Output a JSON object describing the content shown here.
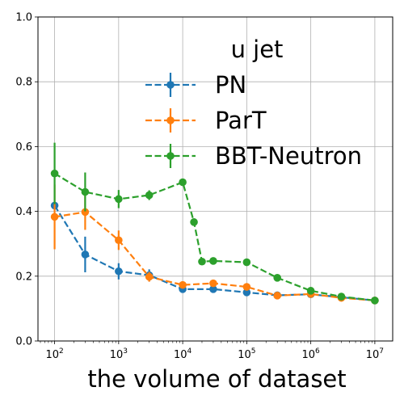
{
  "chart_data": {
    "type": "line",
    "xscale": "log",
    "xlabel": "the volume of dataset",
    "ylabel": "",
    "xlim": [
      55,
      19000000
    ],
    "ylim": [
      0,
      1
    ],
    "x_ticks": [
      100,
      1000,
      10000,
      100000,
      1000000,
      10000000
    ],
    "x_tick_labels": [
      {
        "base": "10",
        "exp": "2"
      },
      {
        "base": "10",
        "exp": "3"
      },
      {
        "base": "10",
        "exp": "4"
      },
      {
        "base": "10",
        "exp": "5"
      },
      {
        "base": "10",
        "exp": "6"
      },
      {
        "base": "10",
        "exp": "7"
      }
    ],
    "y_ticks": [
      0.0,
      0.2,
      0.4,
      0.6,
      0.8,
      1.0
    ],
    "y_tick_labels": [
      "0.0",
      "0.2",
      "0.4",
      "0.6",
      "0.8",
      "1.0"
    ],
    "grid": true,
    "legend": {
      "title": "u jet",
      "placement": "upper-right"
    },
    "series": [
      {
        "name": "PN",
        "color": "#1f77b4",
        "x": [
          100,
          300,
          1000,
          3000,
          10000,
          30000,
          100000,
          300000,
          1000000,
          3000000,
          10000000
        ],
        "y": [
          0.418,
          0.267,
          0.215,
          0.203,
          0.16,
          0.16,
          0.15,
          0.141,
          0.144,
          0.135,
          0.125
        ],
        "err": [
          0.0,
          0.055,
          0.025,
          0.018,
          0.0,
          0.0,
          0.0,
          0.0,
          0.0,
          0.0,
          0.0
        ]
      },
      {
        "name": "ParT",
        "color": "#ff7f0e",
        "x": [
          100,
          300,
          1000,
          3000,
          10000,
          30000,
          100000,
          300000,
          1000000,
          3000000,
          10000000
        ],
        "y": [
          0.383,
          0.398,
          0.311,
          0.198,
          0.173,
          0.178,
          0.167,
          0.14,
          0.145,
          0.133,
          0.125
        ],
        "err": [
          0.1,
          0.055,
          0.03,
          0.015,
          0.0,
          0.0,
          0.0,
          0.0,
          0.0,
          0.0,
          0.0
        ]
      },
      {
        "name": "BBT-Neutron",
        "color": "#2ca02c",
        "x": [
          100,
          300,
          1000,
          3000,
          10000,
          15000,
          20000,
          30000,
          100000,
          300000,
          1000000,
          3000000,
          10000000
        ],
        "y": [
          0.517,
          0.46,
          0.438,
          0.45,
          0.49,
          0.367,
          0.245,
          0.247,
          0.243,
          0.195,
          0.155,
          0.137,
          0.125
        ],
        "err": [
          0.095,
          0.06,
          0.028,
          0.015,
          0.0,
          0.0,
          0.0,
          0.0,
          0.0,
          0.0,
          0.0,
          0.0,
          0.0
        ]
      }
    ]
  }
}
